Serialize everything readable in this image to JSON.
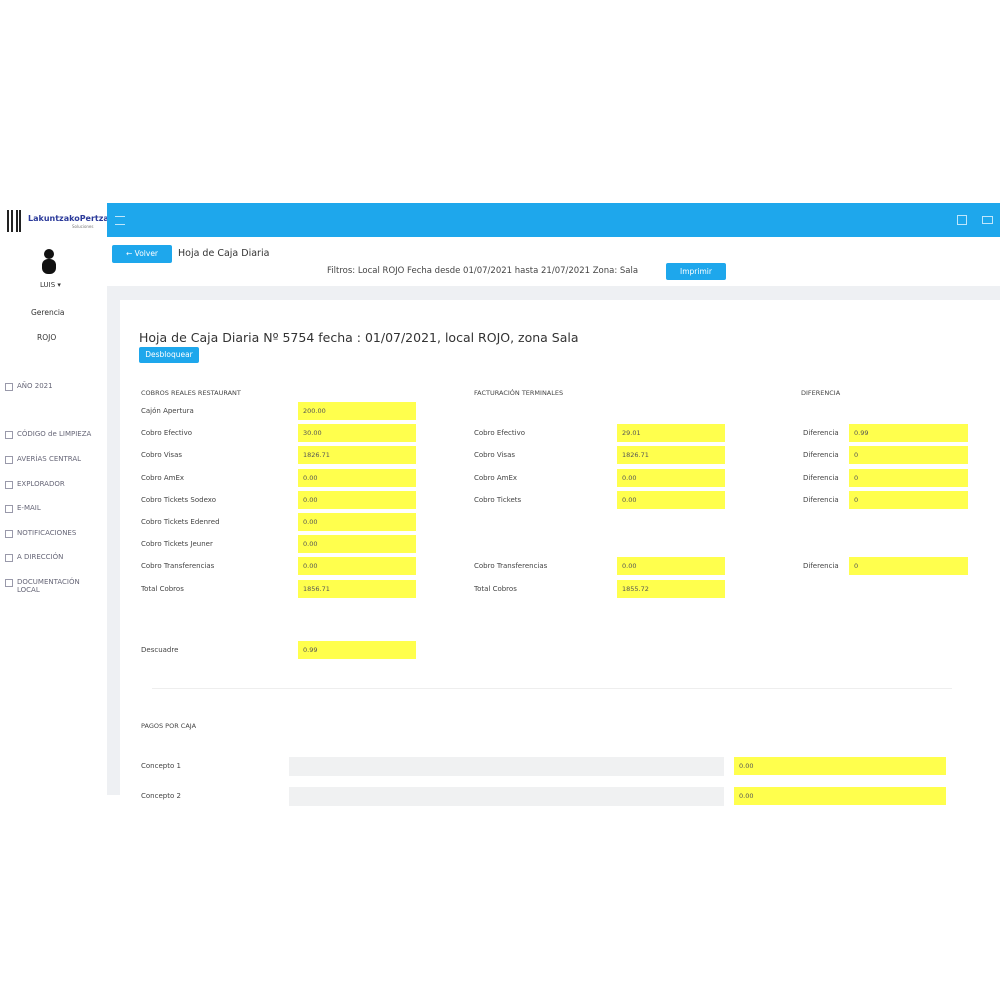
{
  "sidebar": {
    "brand": "LakuntzakoPertza",
    "brand_sub": "Soluciones",
    "user": "LUIS",
    "role": "Gerencia",
    "local": "ROJO",
    "menu": [
      "AÑO 2021",
      "CÓDIGO de LIMPIEZA",
      "AVERÍAS CENTRAL",
      "EXPLORADOR",
      "E-MAIL",
      "NOTIFICACIONES",
      "A DIRECCIÓN",
      "DOCUMENTACIÓN LOCAL"
    ]
  },
  "header": {
    "back": "Volver",
    "title": "Hoja de Caja Diaria",
    "filters": "Filtros: Local ROJO Fecha desde 01/07/2021 hasta 21/07/2021 Zona: Sala",
    "print": "Imprimir"
  },
  "sheet": {
    "title": "Hoja de Caja Diaria Nº 5754 fecha : 01/07/2021, local ROJO, zona Sala",
    "unlock": "Desbloquear",
    "headings": [
      "COBROS REALES RESTAURANT",
      "FACTURACIÓN TERMINALES",
      "DIFERENCIA"
    ],
    "rows": [
      {
        "label": "Cajón Apertura",
        "value": "200.00"
      },
      {
        "label": "Cobro Efectivo",
        "value": "30.00",
        "terminal_label": "Cobro Efectivo",
        "terminal_value": "29.01",
        "diff_label": "Diferencia",
        "diff_value": "0.99"
      },
      {
        "label": "Cobro Visas",
        "value": "1826.71",
        "terminal_label": "Cobro Visas",
        "terminal_value": "1826.71",
        "diff_label": "Diferencia",
        "diff_value": "0"
      },
      {
        "label": "Cobro AmEx",
        "value": "0.00",
        "terminal_label": "Cobro AmEx",
        "terminal_value": "0.00",
        "diff_label": "Diferencia",
        "diff_value": "0"
      },
      {
        "label": "Cobro Tickets Sodexo",
        "value": "0.00",
        "terminal_label": "Cobro Tickets",
        "terminal_value": "0.00",
        "diff_label": "Diferencia",
        "diff_value": "0"
      },
      {
        "label": "Cobro Tickets Edenred",
        "value": "0.00"
      },
      {
        "label": "Cobro Tickets Jeuner",
        "value": "0.00"
      },
      {
        "label": "Cobro Transferencias",
        "value": "0.00",
        "terminal_label": "Cobro Transferencias",
        "terminal_value": "0.00",
        "diff_label": "Diferencia",
        "diff_value": "0"
      },
      {
        "label": "Total Cobros",
        "value": "1856.71",
        "terminal_label": "Total Cobros",
        "terminal_value": "1855.72"
      }
    ],
    "mismatch": {
      "label": "Descuadre",
      "value": "0.99"
    },
    "payments_heading": "PAGOS POR CAJA",
    "payments": [
      {
        "label": "Concepto 1",
        "value": "0.00"
      },
      {
        "label": "Concepto 2",
        "value": "0.00"
      }
    ]
  }
}
